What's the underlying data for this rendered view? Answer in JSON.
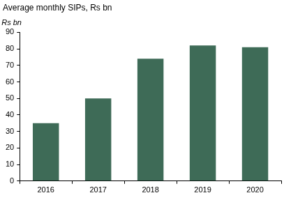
{
  "chart_data": {
    "type": "bar",
    "title": "Average monthly SIPs, Rs bn",
    "y_label": "Rs bn",
    "categories": [
      "2016",
      "2017",
      "2018",
      "2019",
      "2020"
    ],
    "values": [
      35,
      50,
      74,
      82,
      81
    ],
    "color": "#3e6b57",
    "ylim": [
      0,
      90
    ],
    "yticks": [
      0,
      10,
      20,
      30,
      40,
      50,
      60,
      70,
      80,
      90
    ],
    "grid": false
  }
}
